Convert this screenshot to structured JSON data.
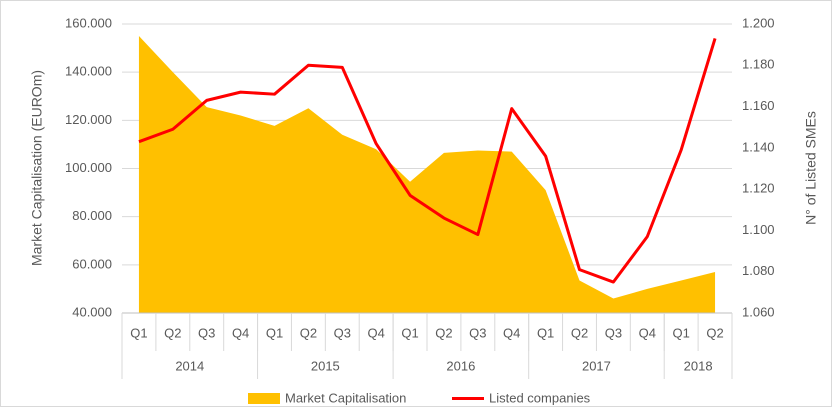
{
  "chart_data": {
    "type": "area-line",
    "categories": [
      "Q1",
      "Q2",
      "Q3",
      "Q4",
      "Q1",
      "Q2",
      "Q3",
      "Q4",
      "Q1",
      "Q2",
      "Q3",
      "Q4",
      "Q1",
      "Q2",
      "Q3",
      "Q4",
      "Q1",
      "Q2"
    ],
    "years": [
      {
        "label": "2014",
        "count": 4
      },
      {
        "label": "2015",
        "count": 4
      },
      {
        "label": "2016",
        "count": 4
      },
      {
        "label": "2017",
        "count": 4
      },
      {
        "label": "2018",
        "count": 2
      }
    ],
    "ylabel": "Market Capitalisation (EUROm)",
    "y2label": "N° of Listed SMEs",
    "ylim": [
      40000,
      160000
    ],
    "yticks": [
      {
        "value": 40000,
        "label": "40.000"
      },
      {
        "value": 60000,
        "label": "60.000"
      },
      {
        "value": 80000,
        "label": "80.000"
      },
      {
        "value": 100000,
        "label": "100.000"
      },
      {
        "value": 120000,
        "label": "120.000"
      },
      {
        "value": 140000,
        "label": "140.000"
      },
      {
        "value": 160000,
        "label": "160.000"
      }
    ],
    "y2lim": [
      1060,
      1200
    ],
    "y2ticks": [
      {
        "value": 1060,
        "label": "1.060"
      },
      {
        "value": 1080,
        "label": "1.080"
      },
      {
        "value": 1100,
        "label": "1.100"
      },
      {
        "value": 1120,
        "label": "1.120"
      },
      {
        "value": 1140,
        "label": "1.140"
      },
      {
        "value": 1160,
        "label": "1.160"
      },
      {
        "value": 1180,
        "label": "1.180"
      },
      {
        "value": 1200,
        "label": "1.200"
      }
    ],
    "grid": true,
    "legend": "bottom",
    "series": [
      {
        "name": "Market Capitalisation",
        "type": "area",
        "color": "#FFC000",
        "values": [
          155000,
          140000,
          125500,
          122000,
          117700,
          125000,
          114000,
          108000,
          94500,
          106500,
          107500,
          107000,
          91000,
          53500,
          46000,
          50000,
          53500,
          57000
        ]
      },
      {
        "name": "Listed companies",
        "type": "line",
        "axis": "y2",
        "color": "#FF0000",
        "values": [
          1143,
          1149,
          1163,
          1167,
          1166,
          1180,
          1179,
          1142,
          1117,
          1106,
          1098,
          1159,
          1136,
          1081,
          1075,
          1097,
          1139,
          1193
        ]
      }
    ]
  }
}
